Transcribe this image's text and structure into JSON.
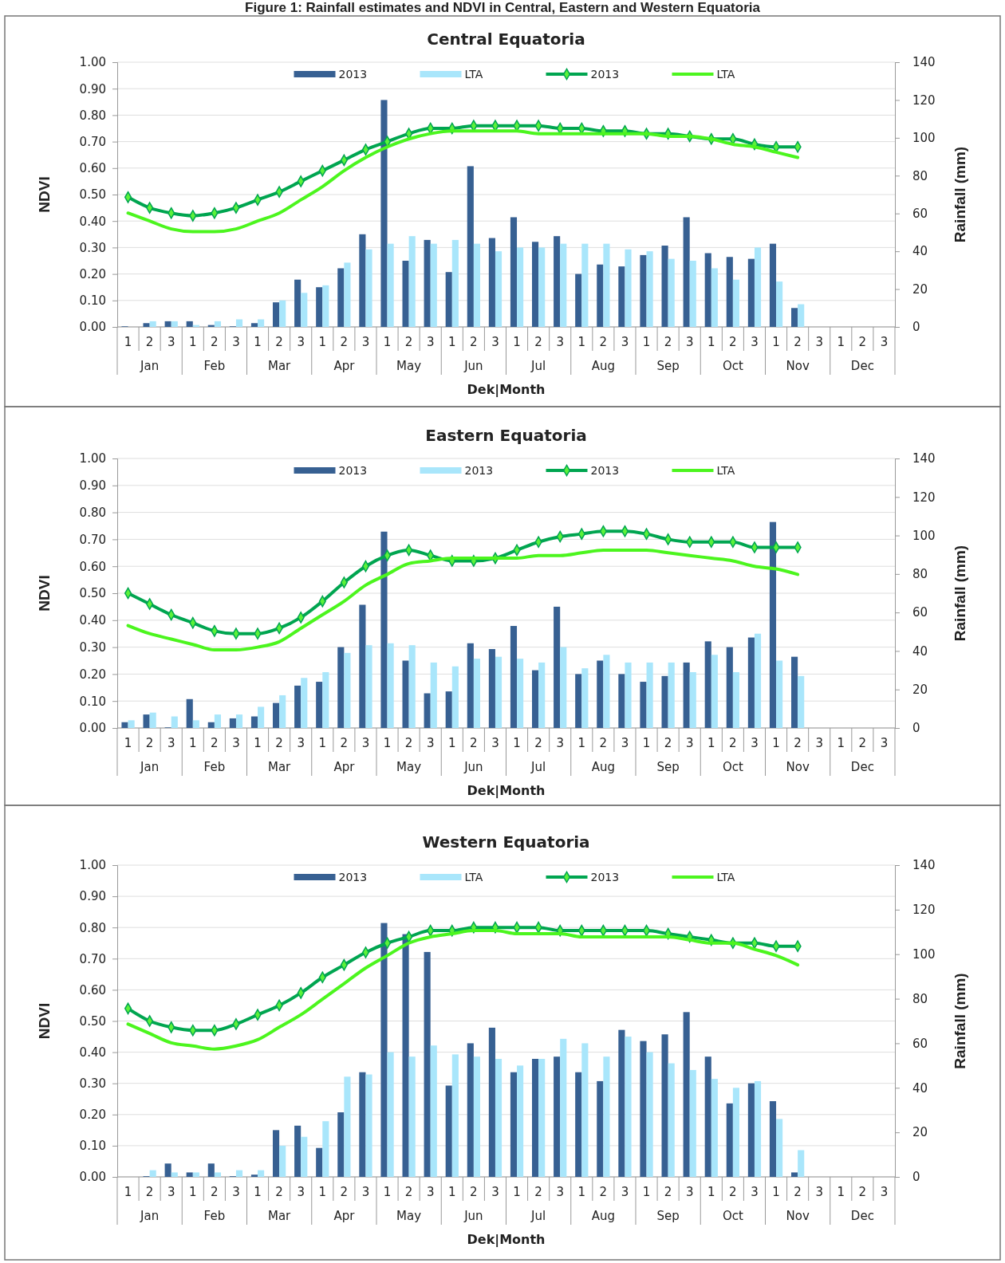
{
  "chart_data": [
    {
      "type": "other",
      "title": "Figure 1: Rainfall estimates and NDVI in Central, Eastern and Western Equatoria"
    },
    {
      "type": "bar",
      "title": "Central Equatoria",
      "xlabel": "Dek|Month",
      "ylabel": "NDVI",
      "y2label": "Rainfall (mm)",
      "categories": [
        "1",
        "2",
        "3",
        "1",
        "2",
        "3",
        "1",
        "2",
        "3",
        "1",
        "2",
        "3",
        "1",
        "2",
        "3",
        "1",
        "2",
        "3",
        "1",
        "2",
        "3",
        "1",
        "2",
        "3",
        "1",
        "2",
        "3",
        "1",
        "2",
        "3",
        "1",
        "2",
        "3",
        "1",
        "2",
        "3"
      ],
      "annotations": [
        "Jan",
        "Feb",
        "Mar",
        "Apr",
        "May",
        "Jun",
        "Jul",
        "Aug",
        "Sep",
        "Oct",
        "Nov",
        "Dec"
      ],
      "ylim": [
        0,
        1
      ],
      "yticks": [
        {
          "value": 0,
          "label": "0.00"
        },
        {
          "value": 0.1,
          "label": "0.10"
        },
        {
          "value": 0.2,
          "label": "0.20"
        },
        {
          "value": 0.3,
          "label": "0.30"
        },
        {
          "value": 0.4,
          "label": "0.40"
        },
        {
          "value": 0.5,
          "label": "0.50"
        },
        {
          "value": 0.6,
          "label": "0.60"
        },
        {
          "value": 0.7,
          "label": "0.70"
        },
        {
          "value": 0.8,
          "label": "0.80"
        },
        {
          "value": 0.9,
          "label": "0.90"
        },
        {
          "value": 1,
          "label": "1.00"
        }
      ],
      "y2lim": [
        0,
        140
      ],
      "y2ticks": [
        0,
        20,
        40,
        60,
        80,
        100,
        120,
        140
      ],
      "grid": "y",
      "legend": "top",
      "series": [
        {
          "name": "2013",
          "type": "bar",
          "axis": "y2",
          "color": "#376092",
          "values": [
            0.3,
            2,
            3,
            3,
            1,
            0.3,
            2,
            13,
            25,
            21,
            31,
            49,
            120,
            35,
            46,
            29,
            85,
            47,
            58,
            45,
            48,
            28,
            33,
            32,
            38,
            43,
            58,
            39,
            37,
            36,
            44,
            10,
            null,
            null,
            null,
            null
          ]
        },
        {
          "name": "LTA",
          "type": "bar",
          "axis": "y2",
          "color": "#a9e6fb",
          "values": [
            null,
            3,
            3,
            1,
            3,
            4,
            4,
            14,
            18,
            22,
            34,
            41,
            44,
            48,
            44,
            46,
            44,
            40,
            42,
            42,
            44,
            44,
            44,
            41,
            40,
            36,
            35,
            31,
            25,
            42,
            24,
            12,
            null,
            null,
            null,
            null
          ]
        },
        {
          "name": "2013",
          "type": "line",
          "marker": "diamond",
          "color": "#00a550",
          "values": [
            0.49,
            0.45,
            0.43,
            0.42,
            0.43,
            0.45,
            0.48,
            0.51,
            0.55,
            0.59,
            0.63,
            0.67,
            0.7,
            0.73,
            0.75,
            0.75,
            0.76,
            0.76,
            0.76,
            0.76,
            0.75,
            0.75,
            0.74,
            0.74,
            0.73,
            0.73,
            0.72,
            0.71,
            0.71,
            0.69,
            0.68,
            0.68,
            null,
            null,
            null,
            null
          ]
        },
        {
          "name": "LTA",
          "type": "line",
          "marker": "none",
          "color": "#4cf51e",
          "values": [
            0.43,
            0.4,
            0.37,
            0.36,
            0.36,
            0.37,
            0.4,
            0.43,
            0.48,
            0.53,
            0.59,
            0.64,
            0.68,
            0.71,
            0.73,
            0.74,
            0.74,
            0.74,
            0.74,
            0.73,
            0.73,
            0.73,
            0.73,
            0.73,
            0.73,
            0.72,
            0.72,
            0.71,
            0.69,
            0.68,
            0.66,
            0.64,
            null,
            null,
            null,
            null
          ]
        }
      ]
    },
    {
      "type": "bar",
      "title": "Eastern Equatoria",
      "xlabel": "Dek|Month",
      "ylabel": "NDVI",
      "y2label": "Rainfall (mm)",
      "categories": [
        "1",
        "2",
        "3",
        "1",
        "2",
        "3",
        "1",
        "2",
        "3",
        "1",
        "2",
        "3",
        "1",
        "2",
        "3",
        "1",
        "2",
        "3",
        "1",
        "2",
        "3",
        "1",
        "2",
        "3",
        "1",
        "2",
        "3",
        "1",
        "2",
        "3",
        "1",
        "2",
        "3",
        "1",
        "2",
        "3"
      ],
      "annotations": [
        "Jan",
        "Feb",
        "Mar",
        "Apr",
        "May",
        "Jun",
        "Jul",
        "Aug",
        "Sep",
        "Oct",
        "Nov",
        "Dec"
      ],
      "ylim": [
        0,
        1
      ],
      "yticks": [
        {
          "value": 0,
          "label": "0.00"
        },
        {
          "value": 0.1,
          "label": "0.10"
        },
        {
          "value": 0.2,
          "label": "0.20"
        },
        {
          "value": 0.3,
          "label": "0.30"
        },
        {
          "value": 0.4,
          "label": "0.40"
        },
        {
          "value": 0.5,
          "label": "0.50"
        },
        {
          "value": 0.6,
          "label": "0.60"
        },
        {
          "value": 0.7,
          "label": "0.70"
        },
        {
          "value": 0.8,
          "label": "0.80"
        },
        {
          "value": 0.9,
          "label": "0.90"
        },
        {
          "value": 1,
          "label": "1.00"
        }
      ],
      "y2lim": [
        0,
        140
      ],
      "y2ticks": [
        0,
        20,
        40,
        60,
        80,
        100,
        120,
        140
      ],
      "grid": "y",
      "legend": "top",
      "series": [
        {
          "name": "2013",
          "type": "bar",
          "axis": "y2",
          "color": "#376092",
          "values": [
            3,
            7,
            0.3,
            15,
            3,
            5,
            6,
            13,
            22,
            24,
            42,
            64,
            102,
            35,
            18,
            19,
            44,
            41,
            53,
            30,
            63,
            28,
            35,
            28,
            24,
            27,
            34,
            45,
            42,
            47,
            107,
            37,
            null,
            null,
            null,
            null
          ]
        },
        {
          "name": "2013",
          "type": "bar",
          "axis": "y2",
          "color": "#a9e6fb",
          "values": [
            4,
            8,
            6,
            4,
            7,
            7,
            11,
            17,
            26,
            29,
            39,
            43,
            44,
            43,
            34,
            32,
            36,
            37,
            36,
            34,
            42,
            31,
            38,
            34,
            34,
            34,
            29,
            38,
            29,
            49,
            35,
            27,
            null,
            null,
            null,
            null
          ]
        },
        {
          "name": "2013",
          "type": "line",
          "marker": "diamond",
          "color": "#00a550",
          "values": [
            0.5,
            0.46,
            0.42,
            0.39,
            0.36,
            0.35,
            0.35,
            0.37,
            0.41,
            0.47,
            0.54,
            0.6,
            0.64,
            0.66,
            0.64,
            0.62,
            0.62,
            0.63,
            0.66,
            0.69,
            0.71,
            0.72,
            0.73,
            0.73,
            0.72,
            0.7,
            0.69,
            0.69,
            0.69,
            0.67,
            0.67,
            0.67,
            null,
            null,
            null,
            null
          ]
        },
        {
          "name": "LTA",
          "type": "line",
          "marker": "none",
          "color": "#4cf51e",
          "values": [
            0.38,
            0.35,
            0.33,
            0.31,
            0.29,
            0.29,
            0.3,
            0.32,
            0.37,
            0.42,
            0.47,
            0.53,
            0.57,
            0.61,
            0.62,
            0.63,
            0.63,
            0.63,
            0.63,
            0.64,
            0.64,
            0.65,
            0.66,
            0.66,
            0.66,
            0.65,
            0.64,
            0.63,
            0.62,
            0.6,
            0.59,
            0.57,
            null,
            null,
            null,
            null
          ]
        }
      ]
    },
    {
      "type": "bar",
      "title": "Western Equatoria",
      "xlabel": "Dek|Month",
      "ylabel": "NDVI",
      "y2label": "Rainfall (mm)",
      "categories": [
        "1",
        "2",
        "3",
        "1",
        "2",
        "3",
        "1",
        "2",
        "3",
        "1",
        "2",
        "3",
        "1",
        "2",
        "3",
        "1",
        "2",
        "3",
        "1",
        "2",
        "3",
        "1",
        "2",
        "3",
        "1",
        "2",
        "3",
        "1",
        "2",
        "3",
        "1",
        "2",
        "3",
        "1",
        "2",
        "3"
      ],
      "annotations": [
        "Jan",
        "Feb",
        "Mar",
        "Apr",
        "May",
        "Jun",
        "Jul",
        "Aug",
        "Sep",
        "Oct",
        "Nov",
        "Dec"
      ],
      "ylim": [
        0,
        1
      ],
      "yticks": [
        {
          "value": 0,
          "label": "0.00"
        },
        {
          "value": 0.1,
          "label": "0.10"
        },
        {
          "value": 0.2,
          "label": "0.20"
        },
        {
          "value": 0.3,
          "label": "0.30"
        },
        {
          "value": 0.4,
          "label": "0.40"
        },
        {
          "value": 0.5,
          "label": "0.50"
        },
        {
          "value": 0.6,
          "label": "0.60"
        },
        {
          "value": 0.7,
          "label": "0.70"
        },
        {
          "value": 0.8,
          "label": "0.80"
        },
        {
          "value": 0.9,
          "label": "0.90"
        },
        {
          "value": 1,
          "label": "1.00"
        }
      ],
      "y2lim": [
        0,
        140
      ],
      "y2ticks": [
        0,
        20,
        40,
        60,
        80,
        100,
        120,
        140
      ],
      "grid": "y",
      "legend": "top",
      "series": [
        {
          "name": "2013",
          "type": "bar",
          "axis": "y2",
          "color": "#376092",
          "values": [
            0,
            0.3,
            6,
            2,
            6,
            0.3,
            1,
            21,
            23,
            13,
            29,
            47,
            114,
            109,
            101,
            41,
            60,
            67,
            47,
            53,
            54,
            47,
            43,
            66,
            61,
            64,
            74,
            54,
            33,
            42,
            34,
            2,
            null,
            null,
            null,
            null
          ]
        },
        {
          "name": "LTA",
          "type": "bar",
          "axis": "y2",
          "color": "#a9e6fb",
          "values": [
            null,
            3,
            2,
            2,
            2,
            3,
            3,
            14,
            18,
            25,
            45,
            46,
            56,
            54,
            59,
            55,
            54,
            53,
            50,
            53,
            62,
            60,
            54,
            63,
            56,
            51,
            48,
            44,
            40,
            43,
            26,
            12,
            null,
            null,
            null,
            null
          ]
        },
        {
          "name": "2013",
          "type": "line",
          "marker": "diamond",
          "color": "#00a550",
          "values": [
            0.54,
            0.5,
            0.48,
            0.47,
            0.47,
            0.49,
            0.52,
            0.55,
            0.59,
            0.64,
            0.68,
            0.72,
            0.75,
            0.77,
            0.79,
            0.79,
            0.8,
            0.8,
            0.8,
            0.8,
            0.79,
            0.79,
            0.79,
            0.79,
            0.79,
            0.78,
            0.77,
            0.76,
            0.75,
            0.75,
            0.74,
            0.74,
            null,
            null,
            null,
            null
          ]
        },
        {
          "name": "LTA",
          "type": "line",
          "marker": "none",
          "color": "#4cf51e",
          "values": [
            0.49,
            0.46,
            0.43,
            0.42,
            0.41,
            0.42,
            0.44,
            0.48,
            0.52,
            0.57,
            0.62,
            0.67,
            0.71,
            0.75,
            0.77,
            0.78,
            0.79,
            0.79,
            0.78,
            0.78,
            0.78,
            0.77,
            0.77,
            0.77,
            0.77,
            0.77,
            0.76,
            0.75,
            0.75,
            0.73,
            0.71,
            0.68,
            null,
            null,
            null,
            null
          ]
        }
      ]
    }
  ]
}
